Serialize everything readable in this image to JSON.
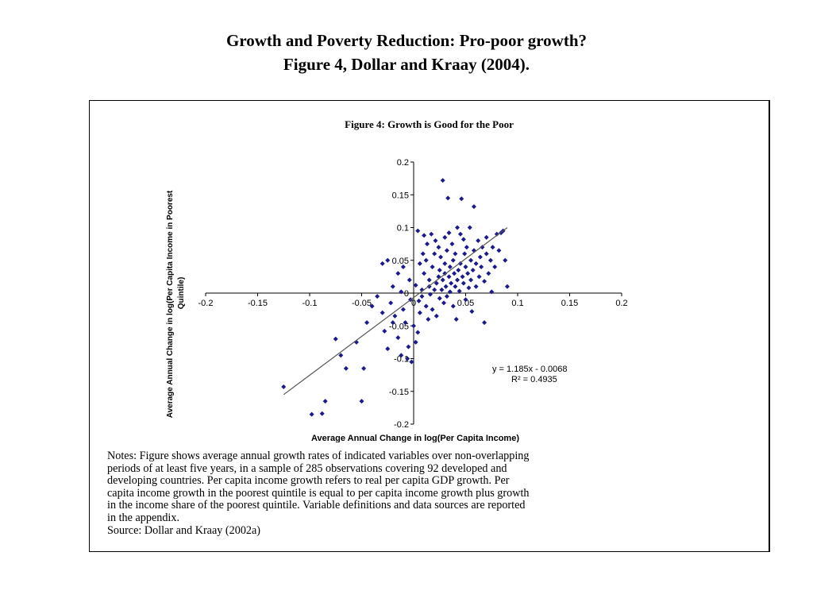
{
  "slide": {
    "title_line1": "Growth and Poverty Reduction: Pro-poor growth?",
    "title_line2": "Figure 4, Dollar and Kraay (2004)."
  },
  "figure": {
    "caption": "Figure 4:  Growth is Good for the Poor",
    "notes_lines": [
      "Notes:  Figure shows average annual growth rates of indicated variables over non-overlapping",
      "periods of at least five years, in a sample of 285 observations covering 92 developed and",
      "developing countries.  Per capita income growth  refers to real per capita GDP growth.  Per",
      "capita income growth in the poorest quintile is equal to per capita income growth plus growth",
      "in the income share of the poorest quintile. Variable definitions and data sources are reported",
      "in the appendix."
    ],
    "source": "Source:  Dollar and Kraay (2002a)"
  },
  "chart_data": {
    "type": "scatter",
    "title": "Figure 4:  Growth is Good for the Poor",
    "xlabel": "Average Annual Change in log(Per Capita Income)",
    "ylabel_line1": "Average Annual Change in log(Per Capita Income in Poorest",
    "ylabel_line2": "Quintile)",
    "xlim": [
      -0.2,
      0.2
    ],
    "ylim": [
      -0.2,
      0.2
    ],
    "x_ticks": [
      -0.2,
      -0.15,
      -0.1,
      -0.05,
      0,
      0.05,
      0.1,
      0.15,
      0.2
    ],
    "x_tick_labels": [
      "-0.2",
      "-0.15",
      "-0.1",
      "-0.05",
      "0",
      "0.05",
      "0.1",
      "0.15",
      "0.2"
    ],
    "y_ticks": [
      0.2,
      0.15,
      0.1,
      0.05,
      0,
      -0.05,
      -0.1,
      -0.15,
      -0.2
    ],
    "y_tick_labels": [
      "0.2",
      "0.15",
      "0.1",
      "0.05",
      "0",
      "-0.05",
      "-0.1",
      "-0.15",
      "-0.2"
    ],
    "trendline": {
      "slope": 1.185,
      "intercept": -0.0068,
      "x_range": [
        -0.125,
        0.09
      ]
    },
    "annotation_equation": "y = 1.185x - 0.0068",
    "annotation_r2": "R² = 0.4935",
    "grid": false,
    "marker_color": "#1a1a8c",
    "points": [
      [
        -0.125,
        -0.143
      ],
      [
        -0.098,
        -0.185
      ],
      [
        -0.088,
        -0.184
      ],
      [
        -0.085,
        -0.165
      ],
      [
        -0.075,
        -0.07
      ],
      [
        -0.07,
        -0.095
      ],
      [
        -0.065,
        -0.115
      ],
      [
        -0.055,
        -0.075
      ],
      [
        -0.05,
        -0.165
      ],
      [
        -0.048,
        -0.115
      ],
      [
        -0.045,
        -0.045
      ],
      [
        -0.04,
        -0.02
      ],
      [
        -0.035,
        -0.005
      ],
      [
        -0.03,
        -0.03
      ],
      [
        -0.028,
        -0.058
      ],
      [
        -0.025,
        -0.085
      ],
      [
        -0.022,
        -0.015
      ],
      [
        -0.02,
        0.01
      ],
      [
        -0.018,
        -0.035
      ],
      [
        -0.015,
        0.03
      ],
      [
        -0.015,
        -0.068
      ],
      [
        -0.012,
        -0.095
      ],
      [
        -0.012,
        0.002
      ],
      [
        -0.01,
        -0.025
      ],
      [
        -0.008,
        -0.045
      ],
      [
        -0.006,
        -0.1
      ],
      [
        -0.005,
        -0.082
      ],
      [
        -0.004,
        0.02
      ],
      [
        -0.003,
        -0.01
      ],
      [
        -0.002,
        -0.105
      ],
      [
        0.0,
        -0.05
      ],
      [
        0.002,
        -0.075
      ],
      [
        0.002,
        0.012
      ],
      [
        0.004,
        0.095
      ],
      [
        0.005,
        -0.012
      ],
      [
        0.006,
        -0.03
      ],
      [
        0.008,
        0.005
      ],
      [
        0.008,
        -0.005
      ],
      [
        0.01,
        0.03
      ],
      [
        0.01,
        0.088
      ],
      [
        0.012,
        -0.02
      ],
      [
        0.012,
        0.05
      ],
      [
        0.014,
        -0.04
      ],
      [
        0.015,
        0.01
      ],
      [
        0.015,
        0.02
      ],
      [
        0.016,
        -0.002
      ],
      [
        0.018,
        0.04
      ],
      [
        0.018,
        -0.025
      ],
      [
        0.02,
        0.005
      ],
      [
        0.02,
        0.06
      ],
      [
        0.022,
        0.015
      ],
      [
        0.022,
        -0.035
      ],
      [
        0.024,
        0.025
      ],
      [
        0.025,
        0.035
      ],
      [
        0.025,
        -0.008
      ],
      [
        0.026,
        0.055
      ],
      [
        0.027,
        0.005
      ],
      [
        0.028,
        0.172
      ],
      [
        0.028,
        0.02
      ],
      [
        0.029,
        -0.015
      ],
      [
        0.03,
        0.03
      ],
      [
        0.03,
        0.045
      ],
      [
        0.031,
        0.01
      ],
      [
        0.032,
        -0.005
      ],
      [
        0.032,
        0.065
      ],
      [
        0.033,
        0.145
      ],
      [
        0.034,
        0.025
      ],
      [
        0.035,
        0.04
      ],
      [
        0.035,
        0.002
      ],
      [
        0.036,
        0.015
      ],
      [
        0.037,
        0.075
      ],
      [
        0.038,
        -0.02
      ],
      [
        0.038,
        0.05
      ],
      [
        0.039,
        0.03
      ],
      [
        0.04,
        0.01
      ],
      [
        0.04,
        0.06
      ],
      [
        0.041,
        -0.04
      ],
      [
        0.042,
        0.02
      ],
      [
        0.043,
        0.035
      ],
      [
        0.044,
        0.003
      ],
      [
        0.045,
        0.09
      ],
      [
        0.045,
        0.045
      ],
      [
        0.046,
        0.144
      ],
      [
        0.047,
        0.025
      ],
      [
        0.048,
        0.015
      ],
      [
        0.049,
        0.06
      ],
      [
        0.05,
        0.04
      ],
      [
        0.05,
        -0.01
      ],
      [
        0.051,
        0.07
      ],
      [
        0.052,
        0.03
      ],
      [
        0.053,
        0.008
      ],
      [
        0.054,
        0.1
      ],
      [
        0.055,
        0.05
      ],
      [
        0.055,
        0.02
      ],
      [
        0.056,
        -0.028
      ],
      [
        0.057,
        0.035
      ],
      [
        0.058,
        0.132
      ],
      [
        0.058,
        0.065
      ],
      [
        0.06,
        0.045
      ],
      [
        0.06,
        0.01
      ],
      [
        0.062,
        0.08
      ],
      [
        0.063,
        0.025
      ],
      [
        0.064,
        0.055
      ],
      [
        0.065,
        0.04
      ],
      [
        0.066,
        0.07
      ],
      [
        0.068,
        0.018
      ],
      [
        0.068,
        -0.045
      ],
      [
        0.07,
        0.06
      ],
      [
        0.07,
        0.085
      ],
      [
        0.072,
        0.03
      ],
      [
        0.074,
        0.05
      ],
      [
        0.075,
        0.002
      ],
      [
        0.076,
        0.07
      ],
      [
        0.078,
        0.04
      ],
      [
        0.08,
        0.09
      ],
      [
        0.082,
        0.065
      ],
      [
        0.084,
        0.092
      ],
      [
        0.086,
        0.095
      ],
      [
        0.088,
        0.05
      ],
      [
        0.09,
        0.01
      ],
      [
        0.006,
        0.045
      ],
      [
        0.009,
        0.06
      ],
      [
        0.013,
        0.075
      ],
      [
        0.017,
        0.09
      ],
      [
        0.021,
        0.08
      ],
      [
        0.024,
        0.07
      ],
      [
        0.03,
        0.085
      ],
      [
        0.034,
        0.092
      ],
      [
        0.042,
        0.1
      ],
      [
        0.048,
        0.082
      ],
      [
        -0.03,
        0.045
      ],
      [
        -0.025,
        0.05
      ],
      [
        -0.01,
        0.04
      ],
      [
        -0.02,
        -0.045
      ],
      [
        0.004,
        -0.06
      ]
    ]
  }
}
